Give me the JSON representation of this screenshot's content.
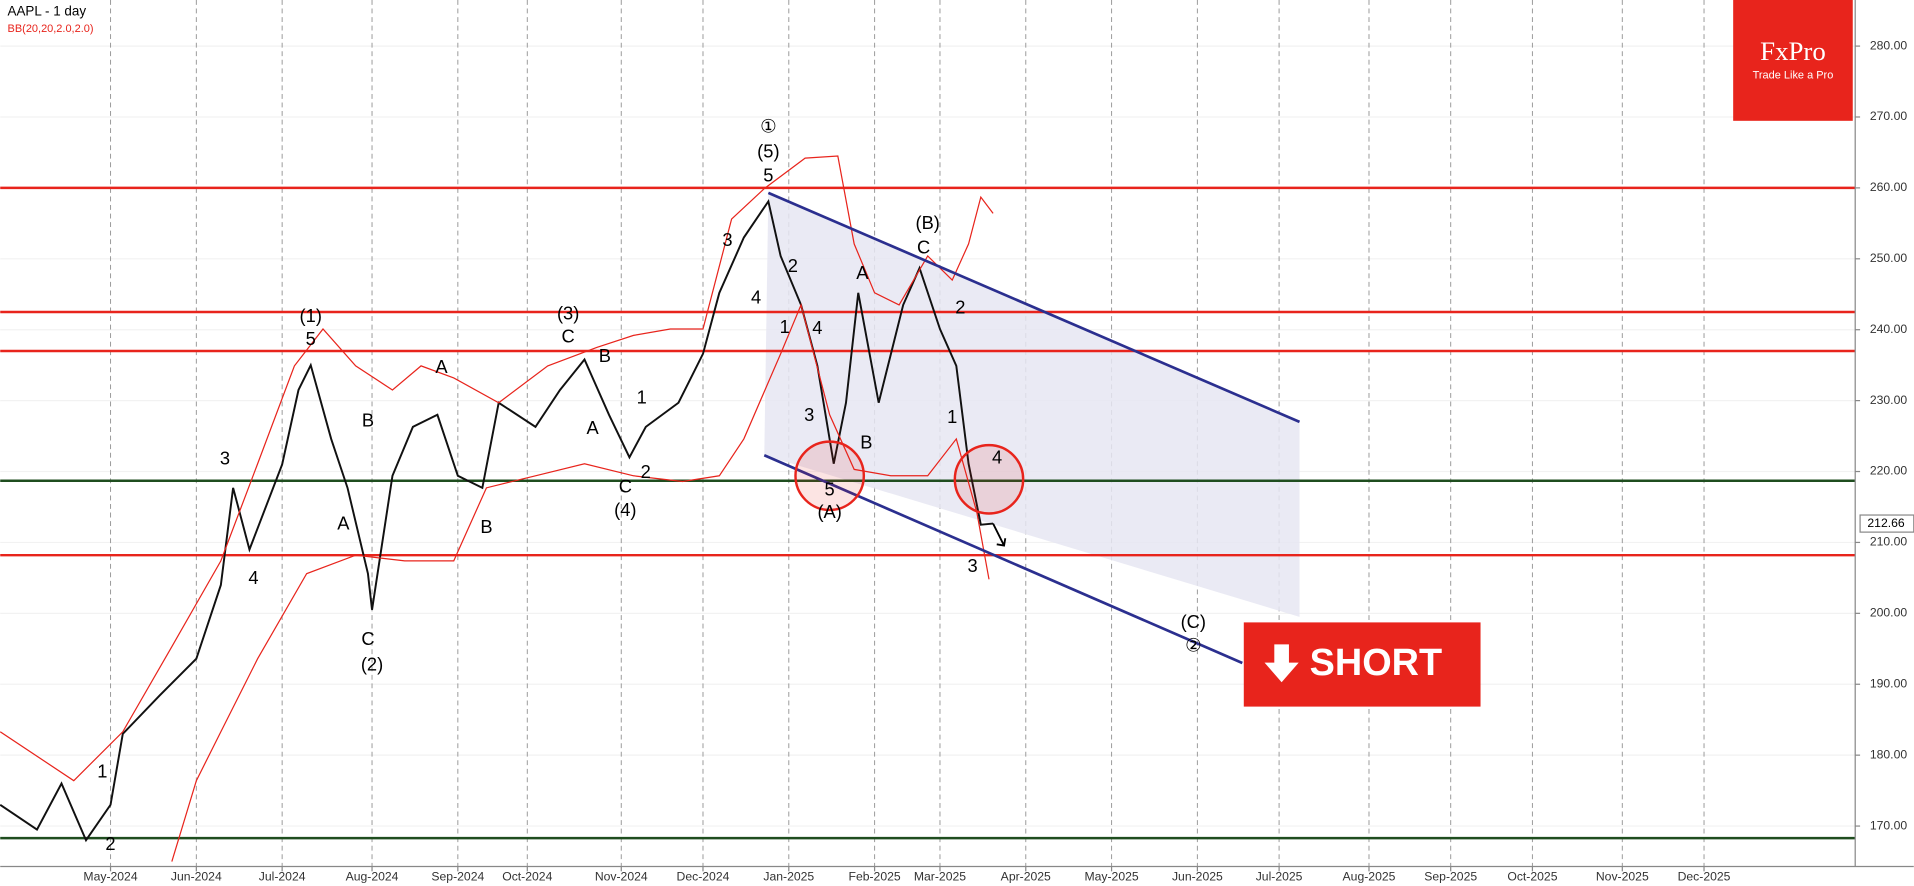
{
  "chart_data": {
    "type": "line",
    "title": "AAPL - 1 day",
    "subtitle": "BB(20,20,2.0,2.0)",
    "brand": {
      "name": "FxPro",
      "tagline": "Trade Like a Pro"
    },
    "signal": "SHORT",
    "xlim": [
      0,
      454
    ],
    "ylim": [
      164.3,
      286.5
    ],
    "xticks": [
      {
        "value": 27,
        "label": "May-2024"
      },
      {
        "value": 48,
        "label": "Jun-2024"
      },
      {
        "value": 69,
        "label": "Jul-2024"
      },
      {
        "value": 91,
        "label": "Aug-2024"
      },
      {
        "value": 112,
        "label": "Sep-2024"
      },
      {
        "value": 129,
        "label": "Oct-2024"
      },
      {
        "value": 152,
        "label": "Nov-2024"
      },
      {
        "value": 172,
        "label": "Dec-2024"
      },
      {
        "value": 193,
        "label": "Jan-2025"
      },
      {
        "value": 214,
        "label": "Feb-2025"
      },
      {
        "value": 230,
        "label": "Mar-2025"
      },
      {
        "value": 251,
        "label": "Apr-2025"
      },
      {
        "value": 272,
        "label": "May-2025"
      },
      {
        "value": 293,
        "label": "Jun-2025"
      },
      {
        "value": 313,
        "label": "Jul-2025"
      },
      {
        "value": 335,
        "label": "Aug-2025"
      },
      {
        "value": 355,
        "label": "Sep-2025"
      },
      {
        "value": 375,
        "label": "Oct-2025"
      },
      {
        "value": 397,
        "label": "Nov-2025"
      },
      {
        "value": 417,
        "label": "Dec-2025"
      }
    ],
    "yticks": [
      {
        "value": 170,
        "label": "170.00"
      },
      {
        "value": 180,
        "label": "180.00"
      },
      {
        "value": 190,
        "label": "190.00"
      },
      {
        "value": 200,
        "label": "200.00"
      },
      {
        "value": 210,
        "label": "210.00"
      },
      {
        "value": 220,
        "label": "220.00"
      },
      {
        "value": 230,
        "label": "230.00"
      },
      {
        "value": 240,
        "label": "240.00"
      },
      {
        "value": 250,
        "label": "250.00"
      },
      {
        "value": 260,
        "label": "260.00"
      },
      {
        "value": 270,
        "label": "270.00"
      },
      {
        "value": 280,
        "label": "280.00"
      }
    ],
    "grid": true,
    "series": [
      {
        "color": "#111111",
        "x": [
          0,
          9,
          15,
          21,
          27,
          30,
          39,
          48,
          54,
          57,
          61,
          69,
          73,
          76,
          81,
          85,
          90,
          91,
          96,
          101,
          107,
          112,
          118,
          122,
          131,
          137,
          143,
          149,
          154,
          158,
          166,
          172,
          176,
          182,
          188,
          191,
          196,
          200,
          204,
          207,
          210,
          215,
          221,
          225,
          230,
          234,
          237,
          240,
          243
        ],
        "values": [
          173,
          169.5,
          176,
          168,
          173,
          183,
          188.4,
          193.6,
          204,
          217.7,
          209,
          221,
          231.5,
          235,
          224.6,
          217.7,
          205.6,
          200.5,
          219.4,
          226.3,
          228,
          219.4,
          217.7,
          229.7,
          226.3,
          231.5,
          235.8,
          228,
          222,
          226.3,
          229.7,
          236.6,
          245.2,
          253,
          258.1,
          250.4,
          243.5,
          234.9,
          221.1,
          229.7,
          245.2,
          229.7,
          243.5,
          248.7,
          240.1,
          234.9,
          221.1,
          212.5,
          212.66
        ]
      },
      {
        "color": "#e8241c",
        "x": [
          0,
          18,
          30,
          42,
          54,
          63,
          72,
          79,
          87,
          96,
          103,
          111,
          122,
          134,
          146,
          155,
          164,
          172,
          179,
          187,
          197,
          205,
          209,
          214,
          220,
          227,
          233,
          237,
          240,
          243
        ],
        "values": [
          183.3,
          176.4,
          183.3,
          195.3,
          207.4,
          221.1,
          234.9,
          240.1,
          234.9,
          231.5,
          234.9,
          233.2,
          229.7,
          234.9,
          237.5,
          239.2,
          240.1,
          240.1,
          255.6,
          259.9,
          264.2,
          264.5,
          252.1,
          245.2,
          243.5,
          250.4,
          247,
          252.1,
          258.7,
          256.4
        ]
      },
      {
        "color": "#e8241c",
        "x": [
          42,
          48,
          54,
          63,
          75,
          87,
          99,
          111,
          119,
          131,
          143,
          155,
          167,
          176,
          182,
          191,
          196,
          203,
          209,
          218,
          227,
          234,
          239,
          242
        ],
        "values": [
          165,
          176.4,
          183.3,
          193.6,
          205.6,
          208.2,
          207.4,
          207.4,
          217.7,
          219.4,
          221.1,
          219.4,
          218.6,
          219.4,
          224.6,
          236.6,
          243.5,
          228,
          220.3,
          219.4,
          219.4,
          224.6,
          214.3,
          204.8
        ]
      }
    ],
    "levels": [
      {
        "value": 260,
        "color": "#e8241c"
      },
      {
        "value": 242.5,
        "color": "#e8241c"
      },
      {
        "value": 237,
        "color": "#e8241c"
      },
      {
        "value": 208.2,
        "color": "#e8241c"
      },
      {
        "value": 218.7,
        "color": "#1f4d1f"
      },
      {
        "value": 168.3,
        "color": "#1f4d1f"
      }
    ],
    "channel": {
      "color": "#2b2f8f",
      "upper": [
        [
          188,
          259.3
        ],
        [
          318,
          227
        ]
      ],
      "lower": [
        [
          187,
          222.3
        ],
        [
          304,
          193
        ]
      ],
      "shade_corner": [
        318,
        199.5
      ]
    },
    "circles": [
      [
        203,
        219.4
      ],
      [
        242,
        218.9
      ]
    ],
    "waves": [
      {
        "x": 27,
        "y": 167.3,
        "text": "2"
      },
      {
        "x": 25,
        "y": 177.5,
        "text": "1"
      },
      {
        "x": 55,
        "y": 221.7,
        "text": "3"
      },
      {
        "x": 62,
        "y": 204.8,
        "text": "4"
      },
      {
        "x": 76,
        "y": 241.8,
        "text": "(1)"
      },
      {
        "x": 76,
        "y": 238.5,
        "text": "5"
      },
      {
        "x": 90,
        "y": 227,
        "text": "B"
      },
      {
        "x": 84,
        "y": 212.5,
        "text": "A"
      },
      {
        "x": 90,
        "y": 196.2,
        "text": "C"
      },
      {
        "x": 91,
        "y": 192.6,
        "text": "(2)"
      },
      {
        "x": 108,
        "y": 234.6,
        "text": "A"
      },
      {
        "x": 119,
        "y": 212,
        "text": "B"
      },
      {
        "x": 139,
        "y": 242.1,
        "text": "(3)"
      },
      {
        "x": 139,
        "y": 238.9,
        "text": "C"
      },
      {
        "x": 148,
        "y": 236.1,
        "text": "B"
      },
      {
        "x": 145,
        "y": 226,
        "text": "A"
      },
      {
        "x": 157,
        "y": 230.3,
        "text": "1"
      },
      {
        "x": 158,
        "y": 219.8,
        "text": "2"
      },
      {
        "x": 153,
        "y": 217.7,
        "text": "C"
      },
      {
        "x": 153,
        "y": 214.4,
        "text": "(4)"
      },
      {
        "x": 188,
        "y": 268.5,
        "text": "①"
      },
      {
        "x": 188,
        "y": 265,
        "text": "(5)"
      },
      {
        "x": 188,
        "y": 261.6,
        "text": "5"
      },
      {
        "x": 178,
        "y": 252.5,
        "text": "3"
      },
      {
        "x": 185,
        "y": 244.4,
        "text": "4"
      },
      {
        "x": 194,
        "y": 248.8,
        "text": "2"
      },
      {
        "x": 192,
        "y": 240.2,
        "text": "1"
      },
      {
        "x": 200,
        "y": 240.1,
        "text": "4"
      },
      {
        "x": 198,
        "y": 227.8,
        "text": "3"
      },
      {
        "x": 211,
        "y": 247.8,
        "text": "A"
      },
      {
        "x": 212,
        "y": 223.9,
        "text": "B"
      },
      {
        "x": 203,
        "y": 217.3,
        "text": "5"
      },
      {
        "x": 203,
        "y": 214.1,
        "text": "(A)"
      },
      {
        "x": 227,
        "y": 254.9,
        "text": "(B)"
      },
      {
        "x": 226,
        "y": 251.4,
        "text": "C"
      },
      {
        "x": 235,
        "y": 243,
        "text": "2"
      },
      {
        "x": 233,
        "y": 227.5,
        "text": "1"
      },
      {
        "x": 238,
        "y": 206.5,
        "text": "3"
      },
      {
        "x": 244,
        "y": 221.8,
        "text": "4"
      },
      {
        "x": 292,
        "y": 198.6,
        "text": "(C)"
      },
      {
        "x": 292,
        "y": 195.3,
        "text": "②"
      }
    ]
  }
}
